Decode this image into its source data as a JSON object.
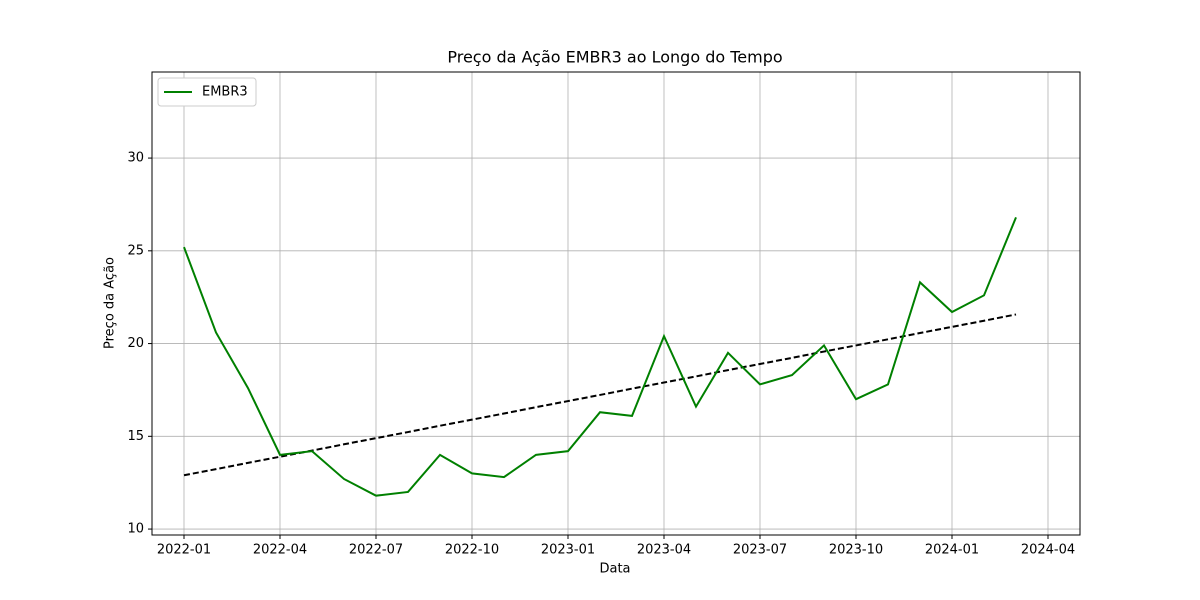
{
  "chart_data": {
    "type": "line",
    "title": "Preço da Ação EMBR3 ao Longo do Tempo",
    "x_label": "Data",
    "y_label": "Preço da Ação",
    "x": [
      "2022-01",
      "2022-02",
      "2022-03",
      "2022-04",
      "2022-05",
      "2022-06",
      "2022-07",
      "2022-08",
      "2022-09",
      "2022-10",
      "2022-11",
      "2022-12",
      "2023-01",
      "2023-02",
      "2023-03",
      "2023-04",
      "2023-05",
      "2023-06",
      "2023-07",
      "2023-08",
      "2023-09",
      "2023-10",
      "2023-11",
      "2023-12",
      "2024-01",
      "2024-02",
      "2024-03"
    ],
    "series": [
      {
        "name": "EMBR3",
        "color": "#008000",
        "values": [
          25.2,
          20.6,
          17.6,
          14.0,
          14.2,
          12.7,
          11.8,
          12.0,
          14.0,
          13.0,
          12.8,
          14.0,
          14.2,
          16.3,
          16.1,
          20.4,
          16.6,
          19.5,
          17.8,
          18.3,
          19.9,
          17.0,
          17.8,
          23.3,
          21.7,
          22.6,
          26.8
        ]
      }
    ],
    "trend": {
      "color": "#000000",
      "dashed": true,
      "values": [
        12.9,
        13.23,
        13.57,
        13.9,
        14.23,
        14.57,
        14.9,
        15.23,
        15.57,
        15.9,
        16.23,
        16.57,
        16.9,
        17.23,
        17.57,
        17.9,
        18.23,
        18.57,
        18.9,
        19.23,
        19.57,
        19.9,
        20.23,
        20.57,
        20.9,
        21.23,
        21.57
      ]
    },
    "xlim": [
      "2021-12",
      "2024-05"
    ],
    "xticks": [
      "2022-01",
      "2022-04",
      "2022-07",
      "2022-10",
      "2023-01",
      "2023-04",
      "2023-07",
      "2023-10",
      "2024-01",
      "2024-04"
    ],
    "ylim": [
      9.68,
      34.64
    ],
    "yticks": [
      10,
      15,
      20,
      25,
      30
    ],
    "grid": true,
    "legend": "upper-left"
  }
}
